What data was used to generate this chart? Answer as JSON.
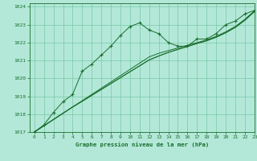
{
  "title": "Graphe pression niveau de la mer (hPa)",
  "bg_color": "#b3e8d8",
  "grid_color": "#78c8a8",
  "line_color": "#1a6e2e",
  "xlim": [
    -0.5,
    23
  ],
  "ylim": [
    1017,
    1024.2
  ],
  "yticks": [
    1017,
    1018,
    1019,
    1020,
    1021,
    1022,
    1023,
    1024
  ],
  "xticks": [
    0,
    1,
    2,
    3,
    4,
    5,
    6,
    7,
    8,
    9,
    10,
    11,
    12,
    13,
    14,
    15,
    16,
    17,
    18,
    19,
    20,
    21,
    22,
    23
  ],
  "series_main": [
    1017.0,
    1017.4,
    1018.1,
    1018.7,
    1019.1,
    1020.4,
    1020.8,
    1021.3,
    1021.8,
    1022.4,
    1022.9,
    1023.1,
    1022.7,
    1022.5,
    1022.0,
    1021.8,
    1021.8,
    1022.2,
    1022.2,
    1022.5,
    1023.0,
    1023.2,
    1023.6,
    1023.8
  ],
  "series_linear": [
    [
      1017.0,
      1017.35,
      1017.7,
      1018.05,
      1018.4,
      1018.75,
      1019.1,
      1019.45,
      1019.8,
      1020.15,
      1020.5,
      1020.85,
      1021.2,
      1021.4,
      1021.55,
      1021.7,
      1021.85,
      1022.0,
      1022.15,
      1022.35,
      1022.6,
      1022.9,
      1023.3,
      1023.78
    ],
    [
      1017.0,
      1017.35,
      1017.7,
      1018.05,
      1018.4,
      1018.72,
      1019.05,
      1019.38,
      1019.71,
      1020.04,
      1020.37,
      1020.7,
      1021.03,
      1021.25,
      1021.45,
      1021.62,
      1021.78,
      1021.95,
      1022.1,
      1022.3,
      1022.55,
      1022.85,
      1023.25,
      1023.73
    ],
    [
      1017.0,
      1017.35,
      1017.7,
      1018.05,
      1018.4,
      1018.72,
      1019.05,
      1019.38,
      1019.71,
      1020.04,
      1020.37,
      1020.7,
      1021.03,
      1021.25,
      1021.45,
      1021.62,
      1021.78,
      1021.95,
      1022.1,
      1022.3,
      1022.55,
      1022.85,
      1023.25,
      1023.73
    ]
  ]
}
